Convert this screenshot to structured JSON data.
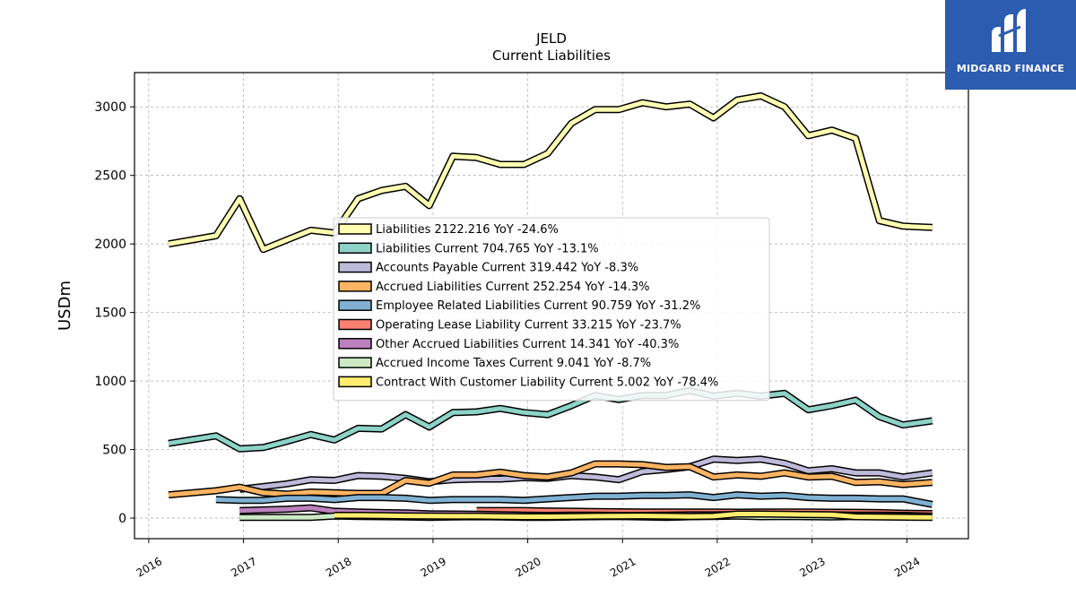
{
  "chart_data": {
    "type": "line",
    "title": "JELD",
    "subtitle": "Current  Liabilities",
    "ylabel": "USDm",
    "xlabel": "",
    "xlim": [
      2015.85,
      2024.65
    ],
    "ylim": [
      -150,
      3250
    ],
    "yticks": [
      0,
      500,
      1000,
      1500,
      2000,
      2500,
      3000
    ],
    "xticks": [
      "2016",
      "2017",
      "2018",
      "2019",
      "2020",
      "2021",
      "2022",
      "2023",
      "2024"
    ],
    "grid": true,
    "legend_position": "center",
    "series": [
      {
        "name": "Liabilities  2122.216 YoY -24.6%",
        "color": "#ffffb3",
        "x": [
          2016.21,
          2016.71,
          2016.96,
          2017.21,
          2017.46,
          2017.71,
          2017.96,
          2018.21,
          2018.46,
          2018.71,
          2018.96,
          2019.21,
          2019.46,
          2019.71,
          2019.96,
          2020.21,
          2020.46,
          2020.71,
          2020.96,
          2021.21,
          2021.46,
          2021.71,
          2021.96,
          2022.21,
          2022.46,
          2022.71,
          2022.96,
          2023.21,
          2023.46,
          2023.71,
          2023.96,
          2024.27
        ],
        "values": [
          2000,
          2060,
          2330,
          1960,
          2030,
          2100,
          2080,
          2330,
          2390,
          2420,
          2280,
          2640,
          2630,
          2580,
          2580,
          2660,
          2880,
          2980,
          2980,
          3030,
          3000,
          3020,
          2920,
          3050,
          3080,
          3000,
          2790,
          2830,
          2770,
          2170,
          2130,
          2120
        ]
      },
      {
        "name": "Liabilities Current  704.765 YoY -13.1%",
        "color": "#8dd3c7",
        "x": [
          2016.21,
          2016.71,
          2016.96,
          2017.21,
          2017.46,
          2017.71,
          2017.96,
          2018.21,
          2018.46,
          2018.71,
          2018.96,
          2019.21,
          2019.46,
          2019.71,
          2019.96,
          2020.21,
          2020.46,
          2020.71,
          2020.96,
          2021.21,
          2021.46,
          2021.71,
          2021.96,
          2022.21,
          2022.46,
          2022.71,
          2022.96,
          2023.21,
          2023.46,
          2023.71,
          2023.96,
          2024.27
        ],
        "values": [
          545,
          600,
          505,
          515,
          560,
          610,
          570,
          655,
          650,
          755,
          665,
          770,
          775,
          800,
          770,
          755,
          820,
          895,
          865,
          895,
          895,
          930,
          890,
          910,
          890,
          910,
          790,
          820,
          860,
          740,
          680,
          710
        ]
      },
      {
        "name": "Accounts Payable Current  319.442 YoY -8.3%",
        "color": "#bebada",
        "x": [
          2016.96,
          2017.21,
          2017.46,
          2017.71,
          2017.96,
          2018.21,
          2018.46,
          2018.71,
          2018.96,
          2019.21,
          2019.46,
          2019.71,
          2019.96,
          2020.21,
          2020.46,
          2020.71,
          2020.96,
          2021.21,
          2021.46,
          2021.71,
          2021.96,
          2022.21,
          2022.46,
          2022.71,
          2022.96,
          2023.21,
          2023.46,
          2023.71,
          2023.96,
          2024.27
        ],
        "values": [
          210,
          230,
          250,
          280,
          275,
          310,
          305,
          290,
          265,
          280,
          285,
          285,
          295,
          290,
          310,
          300,
          280,
          340,
          355,
          375,
          430,
          420,
          430,
          400,
          345,
          360,
          330,
          330,
          300,
          330
        ]
      },
      {
        "name": "Accrued Liabilities Current  252.254 YoY -14.3%",
        "color": "#fdb462",
        "x": [
          2016.21,
          2016.71,
          2016.96,
          2017.21,
          2017.46,
          2017.71,
          2017.96,
          2018.21,
          2018.46,
          2018.71,
          2018.96,
          2019.21,
          2019.46,
          2019.71,
          2019.96,
          2020.21,
          2020.46,
          2020.71,
          2020.96,
          2021.21,
          2021.46,
          2021.71,
          2021.96,
          2022.21,
          2022.46,
          2022.71,
          2022.96,
          2023.21,
          2023.46,
          2023.71,
          2023.96,
          2024.27
        ],
        "values": [
          170,
          200,
          225,
          185,
          175,
          190,
          185,
          180,
          180,
          275,
          255,
          315,
          315,
          335,
          310,
          300,
          330,
          395,
          395,
          390,
          370,
          375,
          300,
          315,
          305,
          330,
          300,
          305,
          260,
          265,
          245,
          260
        ]
      },
      {
        "name": "Employee Related Liabilities Current  90.759 YoY -31.2%",
        "color": "#80b1d3",
        "x": [
          2016.71,
          2016.96,
          2017.21,
          2017.46,
          2017.71,
          2017.96,
          2018.21,
          2018.46,
          2018.71,
          2018.96,
          2019.21,
          2019.46,
          2019.71,
          2019.96,
          2020.21,
          2020.46,
          2020.71,
          2020.96,
          2021.21,
          2021.46,
          2021.71,
          2021.96,
          2022.21,
          2022.46,
          2022.71,
          2022.96,
          2023.21,
          2023.46,
          2023.71,
          2023.96,
          2024.27
        ],
        "values": [
          135,
          130,
          130,
          145,
          145,
          135,
          150,
          150,
          145,
          130,
          135,
          135,
          135,
          130,
          140,
          150,
          160,
          160,
          165,
          165,
          170,
          150,
          170,
          160,
          165,
          150,
          145,
          145,
          140,
          140,
          100
        ]
      },
      {
        "name": "Operating Lease Liability Current  33.215 YoY -23.7%",
        "color": "#fb8072",
        "x": [
          2019.46,
          2019.71,
          2019.96,
          2020.21,
          2020.46,
          2020.71,
          2020.96,
          2021.21,
          2021.46,
          2021.71,
          2021.96,
          2022.21,
          2022.46,
          2022.71,
          2022.96,
          2023.21,
          2023.46,
          2023.71,
          2023.96,
          2024.27
        ],
        "values": [
          55,
          55,
          55,
          52,
          50,
          48,
          46,
          45,
          45,
          44,
          44,
          43,
          45,
          44,
          44,
          43,
          42,
          40,
          36,
          33
        ]
      },
      {
        "name": "Other Accrued Liabilities Current  14.341 YoY -40.3%",
        "color": "#bc80bd",
        "x": [
          2016.96,
          2017.21,
          2017.46,
          2017.71,
          2017.96,
          2018.21,
          2018.46,
          2018.71,
          2018.96,
          2019.21,
          2019.46,
          2019.71,
          2019.96,
          2020.21,
          2020.46,
          2020.71,
          2020.96,
          2021.21,
          2021.46,
          2021.71,
          2021.96,
          2022.21,
          2022.46,
          2022.71,
          2022.96,
          2023.21,
          2023.46,
          2023.71,
          2023.96,
          2024.27
        ],
        "values": [
          55,
          60,
          65,
          75,
          50,
          45,
          40,
          38,
          32,
          30,
          28,
          25,
          22,
          20,
          22,
          22,
          20,
          20,
          22,
          24,
          24,
          26,
          24,
          25,
          25,
          24,
          22,
          22,
          20,
          14
        ]
      },
      {
        "name": "Accrued Income Taxes Current  9.041 YoY -8.7%",
        "color": "#ccebc5",
        "x": [
          2016.96,
          2017.21,
          2017.46,
          2017.71,
          2017.96,
          2018.21,
          2018.46,
          2018.71,
          2018.96,
          2019.21,
          2019.46,
          2019.71,
          2019.96,
          2020.21,
          2020.46,
          2020.71,
          2020.96,
          2021.21,
          2021.46,
          2021.71,
          2021.96,
          2022.21,
          2022.46,
          2022.71,
          2022.96,
          2023.21,
          2023.46,
          2023.71,
          2023.96,
          2024.27
        ],
        "values": [
          5,
          5,
          5,
          5,
          15,
          12,
          10,
          8,
          5,
          8,
          10,
          8,
          5,
          5,
          8,
          10,
          12,
          8,
          5,
          10,
          12,
          15,
          10,
          12,
          10,
          8,
          12,
          10,
          10,
          9
        ]
      },
      {
        "name": "Contract With Customer Liability Current  5.002 YoY -78.4%",
        "color": "#ffed6f",
        "x": [
          2017.96,
          2018.21,
          2018.46,
          2018.71,
          2018.96,
          2019.21,
          2019.46,
          2019.71,
          2019.96,
          2020.21,
          2020.46,
          2020.71,
          2020.96,
          2021.21,
          2021.46,
          2021.71,
          2021.96,
          2022.21,
          2022.46,
          2022.71,
          2022.96,
          2023.21,
          2023.46,
          2023.71,
          2023.96,
          2024.27
        ],
        "values": [
          20,
          20,
          18,
          16,
          15,
          14,
          14,
          12,
          10,
          10,
          12,
          14,
          15,
          16,
          14,
          12,
          14,
          30,
          30,
          28,
          26,
          24,
          10,
          8,
          7,
          5
        ]
      }
    ]
  },
  "logo": {
    "text": "MIDGARD FINANCE"
  }
}
